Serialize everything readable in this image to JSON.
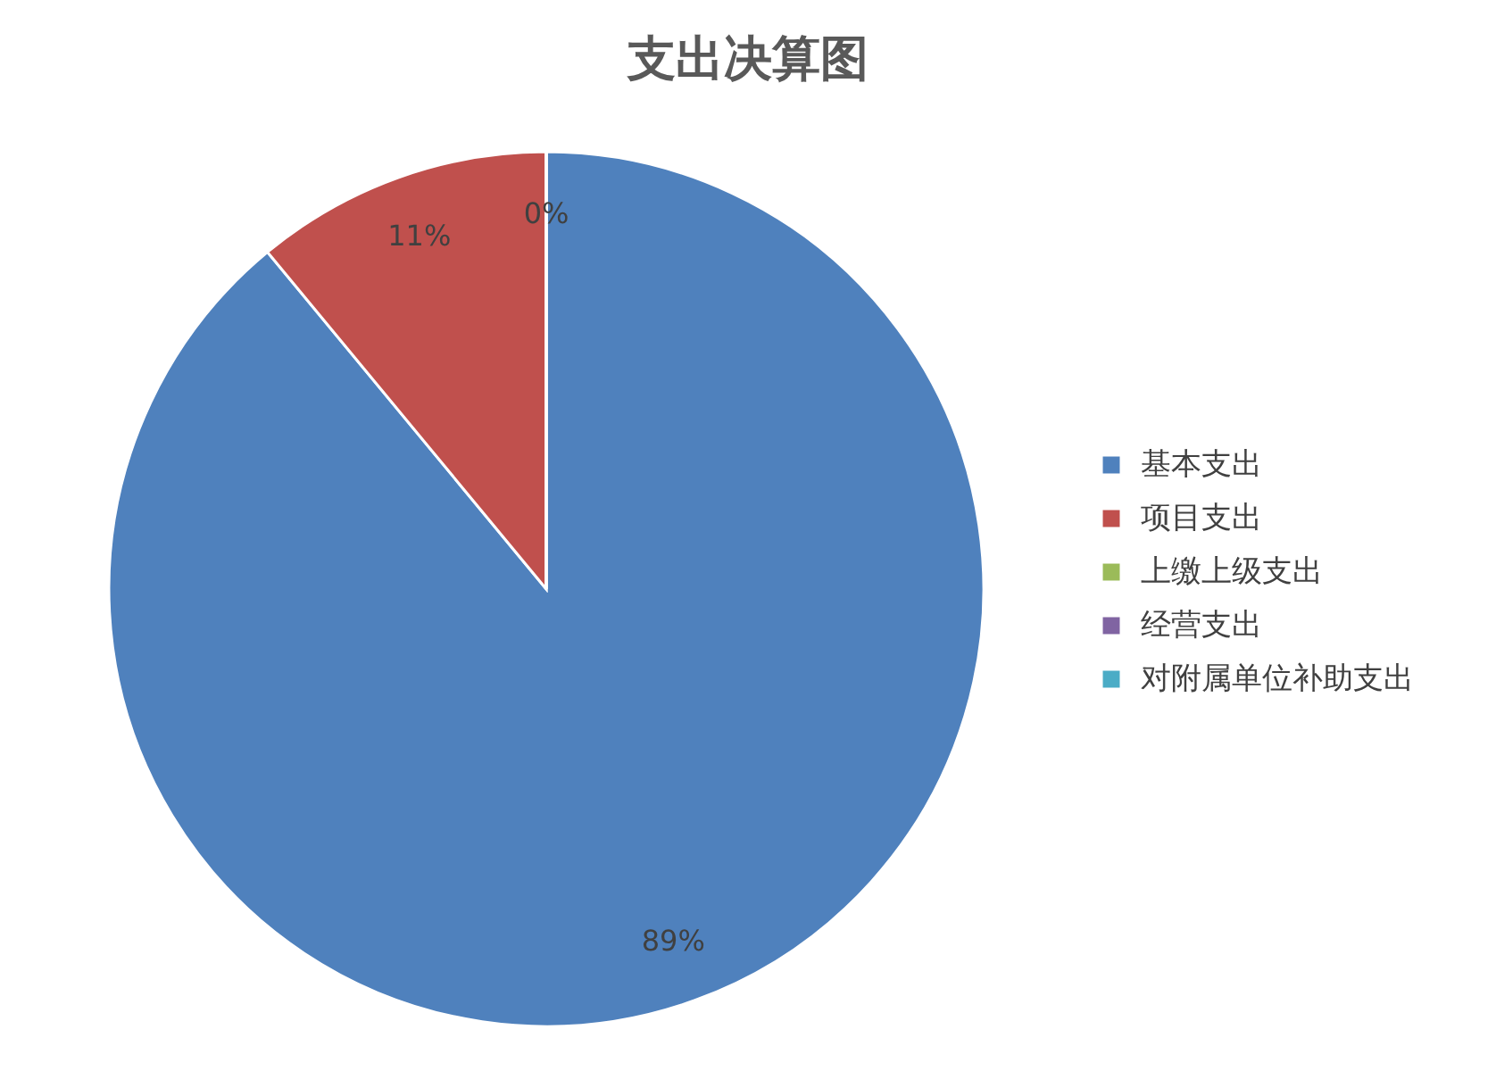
{
  "chart_data": {
    "type": "pie",
    "title": "支出决算图",
    "categories": [
      "基本支出",
      "项目支出",
      "上缴上级支出",
      "经营支出",
      "对附属单位补助支出"
    ],
    "values": [
      89,
      11,
      0,
      0,
      0
    ],
    "colors": [
      "#4f81bd",
      "#c0504d",
      "#9bbb59",
      "#8064a2",
      "#4bacc6"
    ],
    "value_labels": [
      "89%",
      "11%",
      "0%",
      null,
      null
    ],
    "legend": "right"
  }
}
